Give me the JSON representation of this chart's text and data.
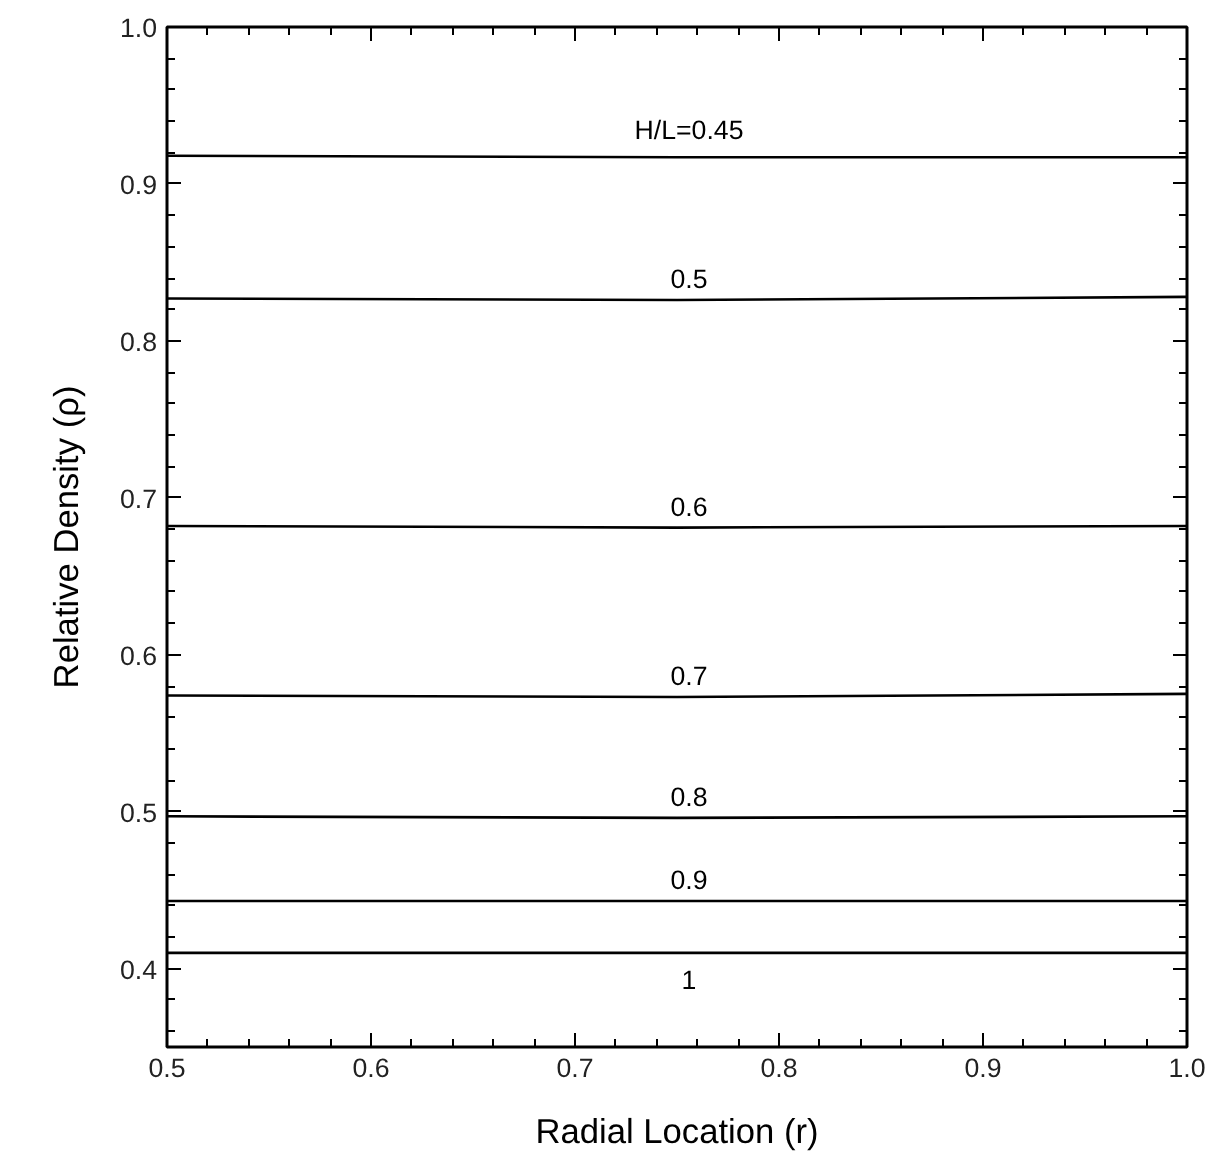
{
  "chart_data": {
    "type": "line",
    "xlabel": "Radial Location (r)",
    "ylabel": "Relative Density (ρ)",
    "xlim": [
      0.5,
      1.0
    ],
    "ylim": [
      0.35,
      1.0
    ],
    "xticks": [
      0.5,
      {
        "value": 0.52,
        "label": null
      },
      {
        "value": 0.54,
        "label": null
      },
      {
        "value": 0.56,
        "label": null
      },
      {
        "value": 0.58,
        "label": null
      },
      0.6,
      {
        "value": 0.62,
        "label": null
      },
      {
        "value": 0.64,
        "label": null
      },
      {
        "value": 0.66,
        "label": null
      },
      {
        "value": 0.68,
        "label": null
      },
      0.7,
      {
        "value": 0.72,
        "label": null
      },
      {
        "value": 0.74,
        "label": null
      },
      {
        "value": 0.76,
        "label": null
      },
      {
        "value": 0.78,
        "label": null
      },
      0.8,
      {
        "value": 0.82,
        "label": null
      },
      {
        "value": 0.84,
        "label": null
      },
      {
        "value": 0.86,
        "label": null
      },
      {
        "value": 0.88,
        "label": null
      },
      0.9,
      {
        "value": 0.92,
        "label": null
      },
      {
        "value": 0.94,
        "label": null
      },
      {
        "value": 0.96,
        "label": null
      },
      {
        "value": 0.98,
        "label": null
      },
      {
        "value": 1.0,
        "label": "1.0"
      }
    ],
    "yticks": [
      {
        "value": 0.36,
        "label": null
      },
      {
        "value": 0.38,
        "label": null
      },
      0.4,
      {
        "value": 0.42,
        "label": null
      },
      {
        "value": 0.44,
        "label": null
      },
      {
        "value": 0.46,
        "label": null
      },
      {
        "value": 0.48,
        "label": null
      },
      0.5,
      {
        "value": 0.52,
        "label": null
      },
      {
        "value": 0.54,
        "label": null
      },
      {
        "value": 0.56,
        "label": null
      },
      {
        "value": 0.58,
        "label": null
      },
      0.6,
      {
        "value": 0.62,
        "label": null
      },
      {
        "value": 0.64,
        "label": null
      },
      {
        "value": 0.66,
        "label": null
      },
      {
        "value": 0.68,
        "label": null
      },
      0.7,
      {
        "value": 0.72,
        "label": null
      },
      {
        "value": 0.74,
        "label": null
      },
      {
        "value": 0.76,
        "label": null
      },
      {
        "value": 0.78,
        "label": null
      },
      0.8,
      {
        "value": 0.82,
        "label": null
      },
      {
        "value": 0.84,
        "label": null
      },
      {
        "value": 0.86,
        "label": null
      },
      {
        "value": 0.88,
        "label": null
      },
      0.9,
      {
        "value": 0.92,
        "label": null
      },
      {
        "value": 0.94,
        "label": null
      },
      {
        "value": 0.96,
        "label": null
      },
      {
        "value": 0.98,
        "label": null
      },
      {
        "value": 1.0,
        "label": "1.0"
      }
    ],
    "x": [
      0.5,
      0.75,
      1.0
    ],
    "series": [
      {
        "name": "H/L=0.45",
        "color": "#000000",
        "values": [
          0.918,
          0.917,
          0.917
        ]
      },
      {
        "name": "0.5",
        "color": "#000000",
        "values": [
          0.827,
          0.826,
          0.828
        ]
      },
      {
        "name": "0.6",
        "color": "#000000",
        "values": [
          0.682,
          0.681,
          0.682
        ]
      },
      {
        "name": "0.7",
        "color": "#000000",
        "values": [
          0.574,
          0.573,
          0.575
        ]
      },
      {
        "name": "0.8",
        "color": "#000000",
        "values": [
          0.497,
          0.496,
          0.497
        ]
      },
      {
        "name": "0.9",
        "color": "#000000",
        "values": [
          0.443,
          0.443,
          0.443
        ]
      },
      {
        "name": "1",
        "color": "#000000",
        "values": [
          0.41,
          0.41,
          0.41
        ]
      }
    ],
    "grid": false,
    "legend": false
  }
}
